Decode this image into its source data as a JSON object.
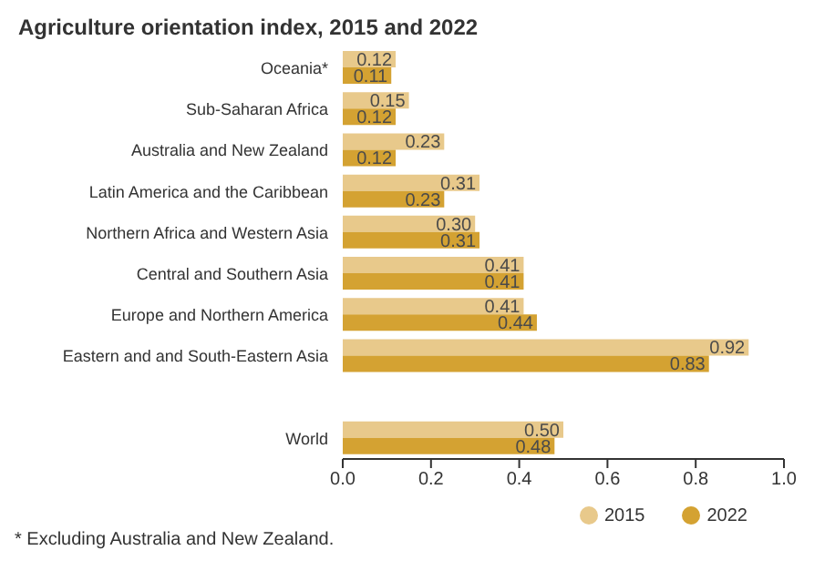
{
  "chart_data": {
    "type": "bar",
    "orientation": "horizontal",
    "title": "Agriculture orientation index, 2015 and 2022",
    "categories": [
      "Oceania*",
      "Sub-Saharan Africa",
      "Australia and New Zealand",
      "Latin America and the Caribbean",
      "Northern Africa and Western Asia",
      "Central and Southern Asia",
      "Europe and Northern America",
      "Eastern and and South-Eastern Asia",
      null,
      "World"
    ],
    "series": [
      {
        "name": "2015",
        "color": "#e8c98b",
        "values": [
          0.12,
          0.15,
          0.23,
          0.31,
          0.3,
          0.41,
          0.41,
          0.92,
          null,
          0.5
        ],
        "value_labels": [
          "0.12",
          "0.15",
          "0.23",
          "0.31",
          "0.30",
          "0.41",
          "0.41",
          "0.92",
          null,
          "0.50"
        ]
      },
      {
        "name": "2022",
        "color": "#d4a232",
        "values": [
          0.11,
          0.12,
          0.12,
          0.23,
          0.31,
          0.41,
          0.44,
          0.83,
          null,
          0.48
        ],
        "value_labels": [
          "0.11",
          "0.12",
          "0.12",
          "0.23",
          "0.31",
          "0.41",
          "0.44",
          "0.83",
          null,
          "0.48"
        ]
      }
    ],
    "xlim": [
      0,
      1
    ],
    "xticks": [
      {
        "value": 0,
        "label": "0.0"
      },
      0.2,
      0.4,
      0.6,
      0.8,
      {
        "value": 1,
        "label": "1.0"
      }
    ],
    "legend": "bottom right",
    "grid": false,
    "annotations": [
      "* Excluding Australia and New Zealand."
    ]
  }
}
